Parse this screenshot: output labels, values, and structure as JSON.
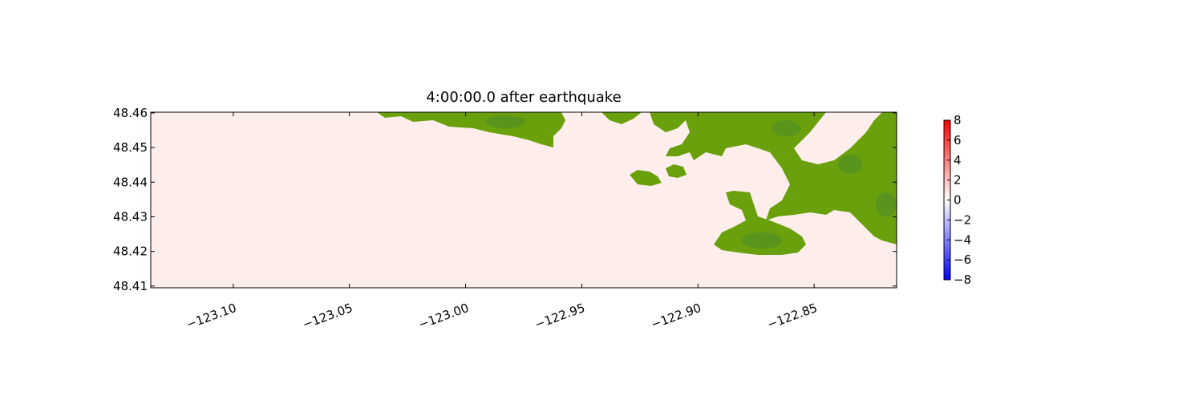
{
  "chart_data": {
    "type": "image",
    "title": "4:00:00.0 after earthquake",
    "field_color": "#fdeeec",
    "xlim": [
      -123.1355,
      -122.8145
    ],
    "ylim": [
      48.4095,
      48.4602
    ],
    "xticks": [
      {
        "value": -123.1,
        "label": "−123.10"
      },
      {
        "value": -123.05,
        "label": "−123.05"
      },
      {
        "value": -123.0,
        "label": "−123.00"
      },
      {
        "value": -122.95,
        "label": "−122.95"
      },
      {
        "value": -122.9,
        "label": "−122.90"
      },
      {
        "value": -122.85,
        "label": "−122.85"
      }
    ],
    "yticks": [
      48.41,
      48.42,
      48.43,
      48.44,
      48.45,
      48.46
    ],
    "colorbar": {
      "lim": [
        -8,
        8
      ],
      "colors": [
        "#0000ff",
        "#ffffff",
        "#ff0000"
      ],
      "ticks": [
        8,
        6,
        4,
        2,
        0,
        {
          "value": -2,
          "label": "−2"
        },
        {
          "value": -4,
          "label": "−4"
        },
        {
          "value": -6,
          "label": "−6"
        },
        {
          "value": -8,
          "label": "−8"
        }
      ]
    }
  }
}
